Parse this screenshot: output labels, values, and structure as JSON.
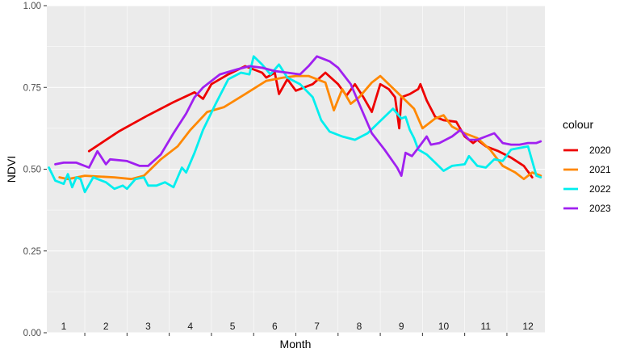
{
  "chart_data": {
    "type": "line",
    "xlabel": "Month",
    "ylabel": "NDVI",
    "xlim": [
      0.6,
      12.4
    ],
    "ylim": [
      0,
      1
    ],
    "yticks": [
      0.0,
      0.25,
      0.5,
      0.75,
      1.0
    ],
    "ytick_labels": [
      "0.00",
      "0.25",
      "0.50",
      "0.75",
      "1.00"
    ],
    "month_labels": [
      "1",
      "2",
      "3",
      "4",
      "5",
      "6",
      "7",
      "8",
      "9",
      "10",
      "11",
      "12"
    ],
    "grid": true,
    "legend": {
      "title": "colour",
      "position": "right"
    },
    "series": [
      {
        "name": "2020",
        "color": "#ee0000",
        "points": [
          [
            1.6,
            0.555
          ],
          [
            2.3,
            0.615
          ],
          [
            3.0,
            0.665
          ],
          [
            3.6,
            0.705
          ],
          [
            4.1,
            0.735
          ],
          [
            4.3,
            0.715
          ],
          [
            4.5,
            0.76
          ],
          [
            4.9,
            0.79
          ],
          [
            5.3,
            0.815
          ],
          [
            5.7,
            0.795
          ],
          [
            5.8,
            0.78
          ],
          [
            6.0,
            0.795
          ],
          [
            6.1,
            0.73
          ],
          [
            6.3,
            0.775
          ],
          [
            6.5,
            0.74
          ],
          [
            6.9,
            0.76
          ],
          [
            7.2,
            0.795
          ],
          [
            7.5,
            0.76
          ],
          [
            7.7,
            0.725
          ],
          [
            7.9,
            0.76
          ],
          [
            8.1,
            0.72
          ],
          [
            8.3,
            0.675
          ],
          [
            8.5,
            0.76
          ],
          [
            8.7,
            0.745
          ],
          [
            8.85,
            0.72
          ],
          [
            8.95,
            0.625
          ],
          [
            9.0,
            0.72
          ],
          [
            9.2,
            0.73
          ],
          [
            9.4,
            0.745
          ],
          [
            9.45,
            0.76
          ],
          [
            9.6,
            0.71
          ],
          [
            9.8,
            0.66
          ],
          [
            10.0,
            0.65
          ],
          [
            10.3,
            0.645
          ],
          [
            10.5,
            0.6
          ],
          [
            10.7,
            0.58
          ],
          [
            10.8,
            0.59
          ],
          [
            11.0,
            0.57
          ],
          [
            11.3,
            0.555
          ],
          [
            11.6,
            0.535
          ],
          [
            11.9,
            0.51
          ],
          [
            12.1,
            0.475
          ]
        ]
      },
      {
        "name": "2021",
        "color": "#ff8800",
        "points": [
          [
            0.9,
            0.475
          ],
          [
            1.1,
            0.47
          ],
          [
            1.5,
            0.48
          ],
          [
            2.2,
            0.475
          ],
          [
            2.6,
            0.47
          ],
          [
            2.9,
            0.48
          ],
          [
            3.3,
            0.53
          ],
          [
            3.7,
            0.57
          ],
          [
            4.0,
            0.62
          ],
          [
            4.4,
            0.675
          ],
          [
            4.8,
            0.69
          ],
          [
            5.3,
            0.73
          ],
          [
            5.8,
            0.77
          ],
          [
            6.2,
            0.78
          ],
          [
            6.5,
            0.785
          ],
          [
            6.8,
            0.785
          ],
          [
            7.2,
            0.765
          ],
          [
            7.4,
            0.68
          ],
          [
            7.6,
            0.745
          ],
          [
            7.8,
            0.7
          ],
          [
            8.0,
            0.72
          ],
          [
            8.3,
            0.765
          ],
          [
            8.5,
            0.785
          ],
          [
            8.9,
            0.735
          ],
          [
            9.3,
            0.685
          ],
          [
            9.5,
            0.625
          ],
          [
            9.8,
            0.655
          ],
          [
            10.0,
            0.665
          ],
          [
            10.2,
            0.63
          ],
          [
            10.5,
            0.61
          ],
          [
            10.8,
            0.595
          ],
          [
            11.1,
            0.56
          ],
          [
            11.4,
            0.51
          ],
          [
            11.7,
            0.49
          ],
          [
            11.9,
            0.47
          ],
          [
            12.1,
            0.49
          ],
          [
            12.3,
            0.48
          ]
        ]
      },
      {
        "name": "2022",
        "color": "#00eeee",
        "points": [
          [
            0.65,
            0.505
          ],
          [
            0.8,
            0.465
          ],
          [
            1.0,
            0.455
          ],
          [
            1.1,
            0.485
          ],
          [
            1.2,
            0.445
          ],
          [
            1.3,
            0.475
          ],
          [
            1.4,
            0.47
          ],
          [
            1.5,
            0.43
          ],
          [
            1.7,
            0.475
          ],
          [
            2.0,
            0.46
          ],
          [
            2.2,
            0.44
          ],
          [
            2.4,
            0.45
          ],
          [
            2.5,
            0.44
          ],
          [
            2.7,
            0.47
          ],
          [
            2.9,
            0.475
          ],
          [
            3.0,
            0.45
          ],
          [
            3.2,
            0.45
          ],
          [
            3.4,
            0.46
          ],
          [
            3.6,
            0.445
          ],
          [
            3.8,
            0.505
          ],
          [
            3.9,
            0.49
          ],
          [
            4.1,
            0.55
          ],
          [
            4.3,
            0.62
          ],
          [
            4.6,
            0.7
          ],
          [
            4.9,
            0.775
          ],
          [
            5.2,
            0.795
          ],
          [
            5.4,
            0.79
          ],
          [
            5.5,
            0.845
          ],
          [
            5.7,
            0.82
          ],
          [
            5.9,
            0.79
          ],
          [
            6.1,
            0.82
          ],
          [
            6.3,
            0.78
          ],
          [
            6.6,
            0.76
          ],
          [
            6.9,
            0.72
          ],
          [
            7.1,
            0.65
          ],
          [
            7.3,
            0.615
          ],
          [
            7.6,
            0.6
          ],
          [
            7.9,
            0.59
          ],
          [
            8.2,
            0.61
          ],
          [
            8.6,
            0.66
          ],
          [
            8.8,
            0.685
          ],
          [
            9.0,
            0.655
          ],
          [
            9.1,
            0.66
          ],
          [
            9.2,
            0.62
          ],
          [
            9.3,
            0.595
          ],
          [
            9.4,
            0.56
          ],
          [
            9.6,
            0.545
          ],
          [
            9.8,
            0.52
          ],
          [
            10.0,
            0.495
          ],
          [
            10.2,
            0.51
          ],
          [
            10.5,
            0.515
          ],
          [
            10.6,
            0.54
          ],
          [
            10.8,
            0.51
          ],
          [
            11.0,
            0.505
          ],
          [
            11.2,
            0.53
          ],
          [
            11.4,
            0.525
          ],
          [
            11.6,
            0.56
          ],
          [
            11.8,
            0.565
          ],
          [
            12.0,
            0.57
          ],
          [
            12.2,
            0.48
          ],
          [
            12.3,
            0.475
          ]
        ]
      },
      {
        "name": "2023",
        "color": "#a020f0",
        "points": [
          [
            0.8,
            0.515
          ],
          [
            1.0,
            0.52
          ],
          [
            1.3,
            0.52
          ],
          [
            1.6,
            0.505
          ],
          [
            1.8,
            0.555
          ],
          [
            2.0,
            0.515
          ],
          [
            2.1,
            0.53
          ],
          [
            2.5,
            0.525
          ],
          [
            2.8,
            0.51
          ],
          [
            3.0,
            0.51
          ],
          [
            3.3,
            0.545
          ],
          [
            3.6,
            0.61
          ],
          [
            3.9,
            0.67
          ],
          [
            4.1,
            0.72
          ],
          [
            4.3,
            0.75
          ],
          [
            4.7,
            0.79
          ],
          [
            5.1,
            0.805
          ],
          [
            5.4,
            0.815
          ],
          [
            5.7,
            0.81
          ],
          [
            6.0,
            0.8
          ],
          [
            6.3,
            0.795
          ],
          [
            6.6,
            0.79
          ],
          [
            6.8,
            0.815
          ],
          [
            7.0,
            0.845
          ],
          [
            7.3,
            0.83
          ],
          [
            7.5,
            0.81
          ],
          [
            7.8,
            0.76
          ],
          [
            8.0,
            0.7
          ],
          [
            8.3,
            0.61
          ],
          [
            8.6,
            0.56
          ],
          [
            8.9,
            0.505
          ],
          [
            9.0,
            0.48
          ],
          [
            9.1,
            0.55
          ],
          [
            9.25,
            0.54
          ],
          [
            9.4,
            0.565
          ],
          [
            9.6,
            0.6
          ],
          [
            9.7,
            0.575
          ],
          [
            9.9,
            0.58
          ],
          [
            10.2,
            0.6
          ],
          [
            10.4,
            0.62
          ],
          [
            10.6,
            0.59
          ],
          [
            10.8,
            0.59
          ],
          [
            11.0,
            0.6
          ],
          [
            11.2,
            0.61
          ],
          [
            11.4,
            0.58
          ],
          [
            11.6,
            0.575
          ],
          [
            11.8,
            0.575
          ],
          [
            12.0,
            0.58
          ],
          [
            12.2,
            0.58
          ],
          [
            12.3,
            0.585
          ]
        ]
      }
    ]
  }
}
